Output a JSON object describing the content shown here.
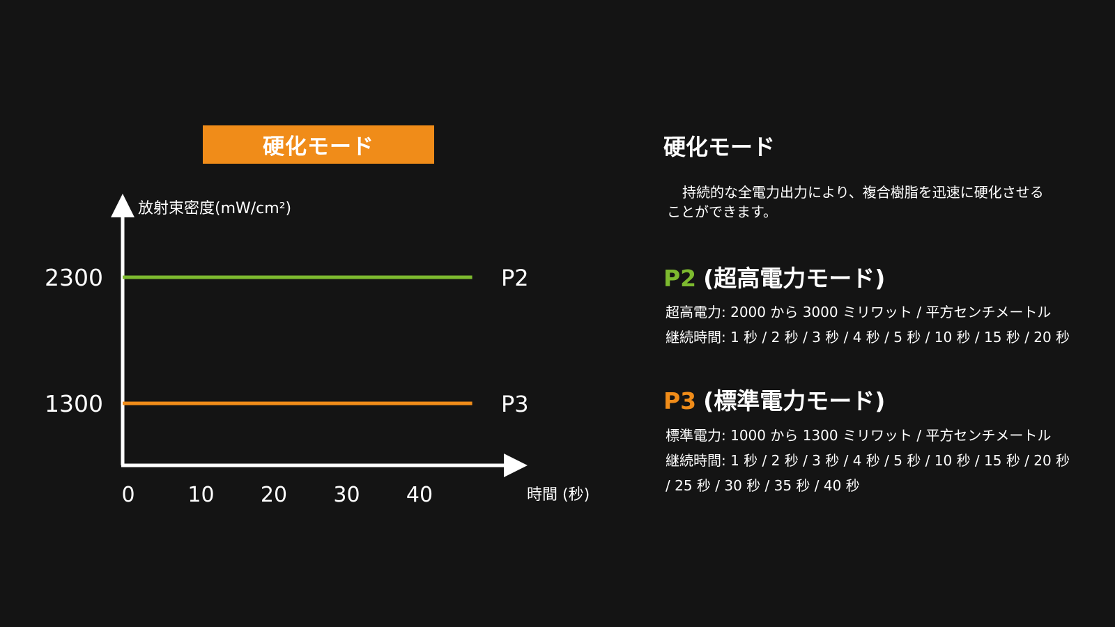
{
  "colors": {
    "background": "#141414",
    "accent_orange": "#F08C19",
    "accent_green": "#7DBA2F",
    "axis": "#FFFFFF"
  },
  "chart_data": {
    "type": "line",
    "banner_title": "硬化モード",
    "ylabel": "放射束密度(mW/cm²)",
    "xlabel": "時間 (秒)",
    "x_ticks": [
      "0",
      "10",
      "20",
      "30",
      "40"
    ],
    "y_ticks": [
      "2300",
      "1300"
    ],
    "xlim": [
      0,
      48
    ],
    "ylim": [
      800,
      2800
    ],
    "series": [
      {
        "name": "P2",
        "color": "#7DBA2F",
        "x": [
          0,
          48
        ],
        "values": [
          2300,
          2300
        ]
      },
      {
        "name": "P3",
        "color": "#F08C19",
        "x": [
          0,
          48
        ],
        "values": [
          1300,
          1300
        ]
      }
    ]
  },
  "panel": {
    "title": "硬化モード",
    "description": "持続的な全電力出力により、複合樹脂を迅速に硬化させることができます。",
    "modes": [
      {
        "code": "P2",
        "name": "(超高電力モード)",
        "color": "#7DBA2F",
        "power": "超高電力: 2000 から 3000 ミリワット / 平方センチメートル",
        "duration": "継続時間: 1 秒 / 2 秒 / 3 秒 / 4 秒 / 5 秒 / 10 秒 / 15 秒 / 20 秒"
      },
      {
        "code": "P3",
        "name": "(標準電力モード)",
        "color": "#F08C19",
        "power": "標準電力: 1000 から 1300 ミリワット / 平方センチメートル",
        "duration": "継続時間: 1 秒 / 2 秒 / 3 秒 / 4 秒 / 5 秒 / 10 秒 / 15 秒 / 20 秒 / 25 秒 / 30 秒 / 35 秒 / 40 秒"
      }
    ]
  }
}
